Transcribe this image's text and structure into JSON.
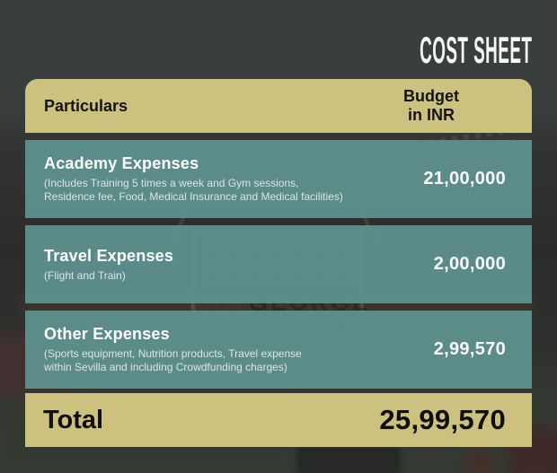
{
  "page": {
    "title": "COST SHEET",
    "background_watermark": "GEORGE"
  },
  "colors": {
    "background_dark": "#383c3d",
    "header_khaki": "#ccc17f",
    "row_teal": "#5d8b87",
    "text_light": "#ffffff",
    "text_dark": "#141414"
  },
  "table": {
    "header": {
      "particulars": "Particulars",
      "budget": "Budget\nin INR"
    },
    "rows": [
      {
        "title": "Academy Expenses",
        "subtitle": "(Includes Training 5 times a week and Gym sessions,\nResidence fee, Food, Medical Insurance and Medical facilities)",
        "amount": "21,00,000"
      },
      {
        "title": "Travel Expenses",
        "subtitle": "(Flight and Train)",
        "amount": "2,00,000"
      },
      {
        "title": "Other Expenses",
        "subtitle": "(Sports equipment, Nutrition products, Travel expense\nwithin Sevilla and including Crowdfunding charges)",
        "amount": "2,99,570"
      }
    ],
    "total": {
      "label": "Total",
      "amount": "25,99,570"
    }
  }
}
